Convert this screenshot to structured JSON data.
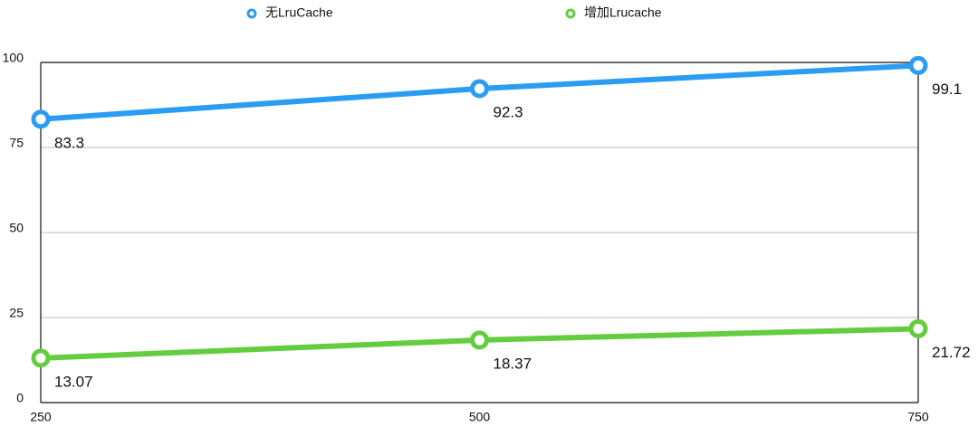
{
  "chart_data": {
    "type": "line",
    "categories": [
      "250",
      "500",
      "750"
    ],
    "series": [
      {
        "name": "无LruCache",
        "color": "#2a9df2",
        "values": [
          83.3,
          92.3,
          99.1
        ]
      },
      {
        "name": "增加Lrucache",
        "color": "#63cd3f",
        "values": [
          13.07,
          18.37,
          21.72
        ]
      }
    ],
    "ylim": [
      0,
      100
    ],
    "yticks": [
      0,
      25,
      50,
      75,
      100
    ],
    "grid": true,
    "legend": "top"
  }
}
